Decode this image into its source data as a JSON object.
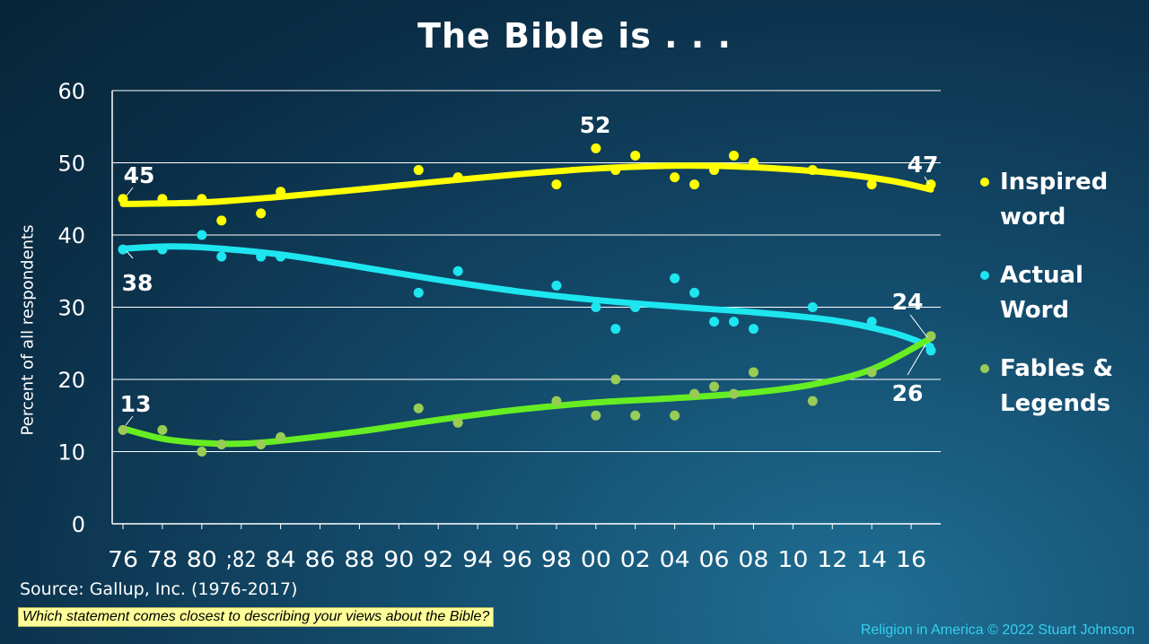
{
  "title": "The Bible is . . .",
  "source": "Source: Gallup, Inc. (1976-2017)",
  "question": "Which statement comes closest to describing your views about the Bible?",
  "credit": "Religion in America © 2022 Stuart Johnson",
  "chart_data": {
    "type": "scatter",
    "title": "The Bible is . . .",
    "ylabel": "Percent of all respondents",
    "xlabel": "",
    "ylim": [
      0,
      60
    ],
    "xlim": [
      1976,
      2017
    ],
    "yticks": [
      0,
      10,
      20,
      30,
      40,
      50,
      60
    ],
    "xticks": [
      {
        "year": 1976,
        "label": "76"
      },
      {
        "year": 1978,
        "label": "78"
      },
      {
        "year": 1980,
        "label": "80"
      },
      {
        "year": 1982,
        "label": ";82"
      },
      {
        "year": 1984,
        "label": "84"
      },
      {
        "year": 1986,
        "label": "86"
      },
      {
        "year": 1988,
        "label": "88"
      },
      {
        "year": 1990,
        "label": "90"
      },
      {
        "year": 1992,
        "label": "92"
      },
      {
        "year": 1994,
        "label": "94"
      },
      {
        "year": 1996,
        "label": "96"
      },
      {
        "year": 1998,
        "label": "98"
      },
      {
        "year": 2000,
        "label": "00"
      },
      {
        "year": 2002,
        "label": "02"
      },
      {
        "year": 2004,
        "label": "04"
      },
      {
        "year": 2006,
        "label": "06"
      },
      {
        "year": 2008,
        "label": "08"
      },
      {
        "year": 2010,
        "label": "10"
      },
      {
        "year": 2012,
        "label": "12"
      },
      {
        "year": 2014,
        "label": "14"
      },
      {
        "year": 2016,
        "label": "16"
      }
    ],
    "grid": true,
    "legend_position": "right",
    "series": [
      {
        "name": "Inspired word",
        "color": "#ffff00",
        "x": [
          1976,
          1978,
          1980,
          1981,
          1983,
          1984,
          1991,
          1993,
          1998,
          2000,
          2001,
          2002,
          2004,
          2005,
          2006,
          2007,
          2008,
          2011,
          2014,
          2017
        ],
        "y": [
          45,
          45,
          45,
          42,
          43,
          46,
          49,
          48,
          47,
          52,
          49,
          51,
          48,
          47,
          49,
          51,
          50,
          49,
          47,
          47
        ],
        "trend": [
          [
            1976,
            44.3
          ],
          [
            1980,
            44.5
          ],
          [
            1984,
            45.3
          ],
          [
            1988,
            46.3
          ],
          [
            1992,
            47.4
          ],
          [
            1996,
            48.4
          ],
          [
            2000,
            49.2
          ],
          [
            2004,
            49.6
          ],
          [
            2008,
            49.4
          ],
          [
            2012,
            48.6
          ],
          [
            2015,
            47.5
          ],
          [
            2017,
            46.3
          ]
        ]
      },
      {
        "name": "Actual Word",
        "color": "#1ee6f0",
        "x": [
          1976,
          1978,
          1980,
          1981,
          1983,
          1984,
          1991,
          1993,
          1998,
          2000,
          2001,
          2002,
          2004,
          2005,
          2006,
          2007,
          2008,
          2011,
          2014,
          2017
        ],
        "y": [
          38,
          38,
          40,
          37,
          37,
          37,
          32,
          35,
          33,
          30,
          27,
          30,
          34,
          32,
          28,
          28,
          27,
          30,
          28,
          24
        ],
        "trend": [
          [
            1976,
            38.1
          ],
          [
            1978,
            38.4
          ],
          [
            1980,
            38.3
          ],
          [
            1984,
            37.3
          ],
          [
            1988,
            35.6
          ],
          [
            1992,
            33.8
          ],
          [
            1996,
            32.2
          ],
          [
            2000,
            31
          ],
          [
            2004,
            30.1
          ],
          [
            2008,
            29.3
          ],
          [
            2012,
            28.2
          ],
          [
            2015,
            26.5
          ],
          [
            2017,
            24.6
          ]
        ]
      },
      {
        "name": "Fables & Legends",
        "color": "#66ee22",
        "marker_color": "#99cc55",
        "x": [
          1976,
          1978,
          1980,
          1981,
          1983,
          1984,
          1991,
          1993,
          1998,
          2000,
          2001,
          2002,
          2004,
          2005,
          2006,
          2007,
          2008,
          2011,
          2014,
          2017
        ],
        "y": [
          13,
          13,
          10,
          11,
          11,
          12,
          16,
          14,
          17,
          15,
          20,
          15,
          15,
          18,
          19,
          18,
          21,
          17,
          21,
          26
        ],
        "trend": [
          [
            1976,
            13.2
          ],
          [
            1978,
            11.8
          ],
          [
            1980,
            11.2
          ],
          [
            1982,
            11.1
          ],
          [
            1984,
            11.5
          ],
          [
            1988,
            12.8
          ],
          [
            1992,
            14.4
          ],
          [
            1996,
            15.8
          ],
          [
            2000,
            16.8
          ],
          [
            2004,
            17.4
          ],
          [
            2008,
            18.2
          ],
          [
            2011,
            19.3
          ],
          [
            2014,
            21.4
          ],
          [
            2017,
            25.7
          ]
        ]
      }
    ],
    "annotations": [
      {
        "series": "Inspired word",
        "year": 1976,
        "value": 45,
        "text": "45"
      },
      {
        "series": "Inspired word",
        "year": 2000,
        "value": 52,
        "text": "52"
      },
      {
        "series": "Inspired word",
        "year": 2017,
        "value": 47,
        "text": "47"
      },
      {
        "series": "Actual Word",
        "year": 1976,
        "value": 38,
        "text": "38"
      },
      {
        "series": "Actual Word",
        "year": 2017,
        "value": 24,
        "text": "24"
      },
      {
        "series": "Fables & Legends",
        "year": 1976,
        "value": 13,
        "text": "13"
      },
      {
        "series": "Fables & Legends",
        "year": 2017,
        "value": 26,
        "text": "26"
      }
    ]
  },
  "legend": [
    {
      "line1": "Inspired",
      "line2": "word",
      "color": "#ffff00"
    },
    {
      "line1": "Actual",
      "line2": "Word",
      "color": "#1ee6f0"
    },
    {
      "line1": "Fables &",
      "line2": "Legends",
      "color": "#99cc55"
    }
  ]
}
